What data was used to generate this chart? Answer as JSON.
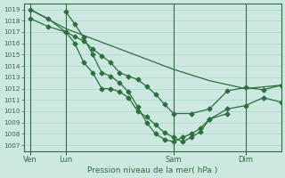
{
  "background_color": "#cce8e0",
  "grid_color": "#aad4cc",
  "line_color": "#2d6e3e",
  "xlabel": "Pression niveau de la mer( hPa )",
  "ylim_min": 1006.5,
  "ylim_max": 1019.5,
  "yticks": [
    1007,
    1008,
    1009,
    1010,
    1011,
    1012,
    1013,
    1014,
    1015,
    1016,
    1017,
    1018,
    1019
  ],
  "xtick_labels": [
    "Ven",
    "Lun",
    "Sam",
    "Dim"
  ],
  "xtick_positions": [
    0,
    24,
    96,
    144
  ],
  "xlim_min": -4,
  "xlim_max": 168,
  "vline_positions": [
    0,
    24,
    96,
    144
  ],
  "series_smooth": {
    "x": [
      0,
      24,
      48,
      72,
      96,
      120,
      144,
      168
    ],
    "y": [
      1019.0,
      1017.3,
      1016.1,
      1014.9,
      1013.7,
      1012.7,
      1012.0,
      1012.3
    ]
  },
  "series_a": {
    "x": [
      0,
      12,
      24,
      30,
      36,
      42,
      48,
      54,
      60,
      66,
      72,
      78,
      84,
      90,
      96,
      108,
      120,
      132,
      144,
      156,
      168
    ],
    "y": [
      1019.0,
      1018.2,
      1017.0,
      1016.6,
      1016.2,
      1015.5,
      1014.9,
      1014.3,
      1013.4,
      1013.1,
      1012.8,
      1012.2,
      1011.5,
      1010.6,
      1009.8,
      1009.8,
      1010.2,
      1011.8,
      1012.1,
      1011.9,
      1012.3
    ]
  },
  "series_b": {
    "x": [
      0,
      12,
      24,
      30,
      36,
      42,
      48,
      54,
      60,
      66,
      72,
      78,
      84,
      90,
      96,
      102,
      108,
      114,
      120,
      132,
      144,
      156,
      168
    ],
    "y": [
      1018.2,
      1017.5,
      1017.0,
      1016.0,
      1014.3,
      1013.4,
      1012.0,
      1012.0,
      1011.7,
      1011.2,
      1010.0,
      1009.5,
      1008.8,
      1008.1,
      1007.7,
      1007.3,
      1007.7,
      1008.2,
      1009.3,
      1010.2,
      1010.5,
      1011.2,
      1010.8
    ]
  },
  "series_c": {
    "x": [
      24,
      30,
      36,
      42,
      48,
      54,
      60,
      66,
      72,
      78,
      84,
      90,
      96,
      102,
      108,
      114,
      120,
      132
    ],
    "y": [
      1018.8,
      1017.7,
      1016.5,
      1015.0,
      1013.4,
      1013.1,
      1012.5,
      1011.7,
      1010.4,
      1009.0,
      1008.0,
      1007.5,
      1007.3,
      1007.7,
      1008.0,
      1008.5,
      1009.3,
      1009.8
    ]
  }
}
